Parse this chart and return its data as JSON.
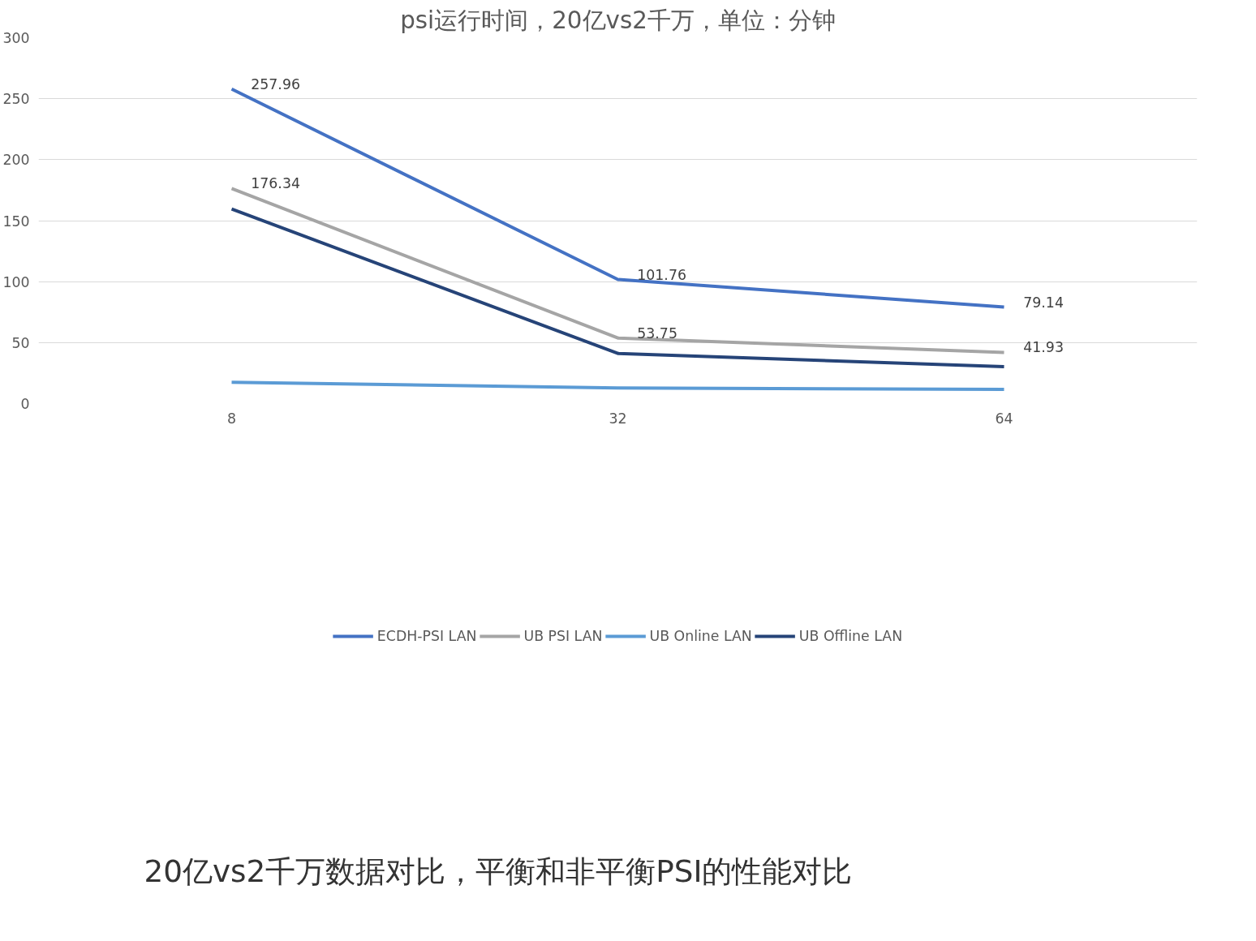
{
  "chart_data": {
    "type": "line",
    "title": "psi运行时间，20亿vs2千万，单位：分钟",
    "categories": [
      "8",
      "32",
      "64"
    ],
    "series": [
      {
        "name": "ECDH-PSI LAN",
        "color": "#4472c4",
        "values": [
          257.96,
          101.76,
          79.14
        ],
        "value_labels": [
          "257.96",
          "101.76",
          "79.14"
        ]
      },
      {
        "name": "UB PSI LAN",
        "color": "#a5a5a5",
        "values": [
          176.34,
          53.75,
          41.93
        ],
        "value_labels": [
          "176.34",
          "53.75",
          "41.93"
        ]
      },
      {
        "name": "UB Online LAN",
        "color": "#5b9bd5",
        "values": [
          17.4,
          12.8,
          11.7
        ]
      },
      {
        "name": "UB Offline LAN",
        "color": "#264478",
        "values": [
          159.6,
          41.1,
          30.2
        ]
      }
    ],
    "ylim": [
      0,
      300
    ],
    "yticks": [
      0,
      50,
      100,
      150,
      200,
      250,
      300
    ],
    "grid": "y",
    "legend": "bottom",
    "marker": "none",
    "line_style": "solid",
    "annotations": [
      "20亿vs2千万数据对比，平衡和非平衡PSI的性能对比"
    ]
  }
}
